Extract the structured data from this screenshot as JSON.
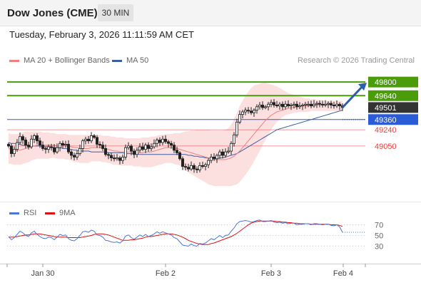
{
  "header": {
    "title": "Dow Jones (CME)",
    "timeframe": "30 MIN"
  },
  "datetime": "Tuesday, February 3, 2026 11:11:59 AM CET",
  "legend": {
    "ma20": "MA 20 + Bollinger Bands",
    "ma50": "MA 50",
    "credit": "Research © 2026 Trading Central"
  },
  "rsi_legend": {
    "rsi": "RSI",
    "ma9": "9MA"
  },
  "colors": {
    "green": "#4a9c0b",
    "blue": "#2a5cd8",
    "red": "#e84040",
    "dark": "#333333",
    "rsi": "#4a77d6",
    "ma9": "#e01010",
    "ma50": "#3a5fa0",
    "ma20": "#f08080",
    "bands": "#fbdada",
    "arrow": "#2e5ea8"
  },
  "chart_data": [
    {
      "type": "candlestick",
      "name": "price",
      "ylim": [
        48380,
        49960
      ],
      "x_ticks": [
        "Jan 30",
        "Feb 2",
        "Feb 3",
        "Feb 4"
      ],
      "levels": [
        {
          "label": "49800",
          "value": 49800,
          "kind": "resistance"
        },
        {
          "label": "49640",
          "value": 49640,
          "kind": "resistance"
        },
        {
          "label": "49501",
          "value": 49501,
          "kind": "last"
        },
        {
          "label": "49360",
          "value": 49360,
          "kind": "support"
        },
        {
          "label": "49240",
          "value": 49240,
          "kind": "pivot"
        },
        {
          "label": "49050",
          "value": 49050,
          "kind": "pivot"
        }
      ],
      "close": [
        49050,
        48960,
        49010,
        49090,
        49160,
        49120,
        49060,
        49040,
        49130,
        49170,
        49110,
        49060,
        49020,
        49010,
        49040,
        49030,
        48980,
        49030,
        49080,
        49060,
        49070,
        48980,
        48940,
        48920,
        48960,
        49020,
        49110,
        49130,
        49110,
        49170,
        49150,
        49070,
        49060,
        49020,
        48950,
        48940,
        48910,
        48900,
        48910,
        48880,
        48920,
        49030,
        49050,
        48990,
        48950,
        49000,
        49040,
        49010,
        49060,
        49020,
        49040,
        49080,
        49120,
        49090,
        49130,
        49100,
        49080,
        49060,
        49000,
        48970,
        48900,
        48810,
        48800,
        48780,
        48820,
        48780,
        48770,
        48820,
        48810,
        48830,
        48880,
        48920,
        48900,
        48940,
        48980,
        48940,
        48980,
        48990,
        49080,
        49180,
        49330,
        49420,
        49450,
        49470,
        49460,
        49440,
        49470,
        49510,
        49530,
        49500,
        49510,
        49540,
        49560,
        49530,
        49520,
        49540,
        49510,
        49540,
        49520,
        49530,
        49540,
        49510,
        49520,
        49530,
        49540,
        49540,
        49520,
        49540,
        49550,
        49540,
        49530,
        49540,
        49550,
        49530,
        49520,
        49540,
        49520,
        49501
      ],
      "ma20": [
        49020,
        49010,
        49000,
        49000,
        49000,
        49010,
        49020,
        49030,
        49040,
        49050,
        49060,
        49060,
        49060,
        49060,
        49060,
        49060,
        49060,
        49050,
        49050,
        49050,
        49050,
        49050,
        49040,
        49030,
        49030,
        49020,
        49020,
        49020,
        49020,
        49030,
        49030,
        49030,
        49030,
        49020,
        49020,
        49010,
        49000,
        48990,
        48990,
        48980,
        48980,
        48980,
        48980,
        48980,
        48970,
        48970,
        48970,
        48970,
        48980,
        48980,
        48980,
        48990,
        49000,
        49010,
        49020,
        49030,
        49030,
        49030,
        49020,
        49020,
        49010,
        49000,
        48990,
        48980,
        48970,
        48960,
        48950,
        48940,
        48930,
        48920,
        48910,
        48900,
        48890,
        48890,
        48890,
        48890,
        48890,
        48900,
        48910,
        48930,
        48960,
        48990,
        49030,
        49070,
        49110,
        49150,
        49190,
        49230,
        49270,
        49310,
        49350,
        49380,
        49410,
        49430,
        49450,
        49460,
        49470,
        49480,
        49490,
        49500,
        49500,
        49510,
        49510,
        49520,
        49520,
        49520,
        49520,
        49520,
        49530,
        49530,
        49530,
        49530,
        49530,
        49530,
        49530,
        49530,
        49530,
        49530
      ],
      "ma50": [
        49090,
        49080,
        49080,
        49070,
        49070,
        49060,
        49060,
        49060,
        49050,
        49050,
        49050,
        49050,
        49040,
        49040,
        49040,
        49040,
        49030,
        49030,
        49030,
        49020,
        49020,
        49010,
        49010,
        49000,
        49000,
        48990,
        48990,
        48990,
        48990,
        48980,
        48980,
        48980,
        48980,
        48980,
        48980,
        48970,
        48970,
        48970,
        48970,
        48970,
        48970,
        48960,
        48960,
        48960,
        48960,
        48960,
        48950,
        48950,
        48950,
        48950,
        48950,
        48950,
        48950,
        48950,
        48950,
        48950,
        48950,
        48950,
        48950,
        48950,
        48950,
        48950,
        48950,
        48940,
        48940,
        48930,
        48930,
        48920,
        48920,
        48910,
        48910,
        48900,
        48900,
        48900,
        48910,
        48910,
        48920,
        48930,
        48940,
        48950,
        48960,
        48980,
        49000,
        49020,
        49040,
        49060,
        49080,
        49100,
        49120,
        49140,
        49160,
        49180,
        49200,
        49220,
        49240,
        49250,
        49260,
        49270,
        49280,
        49290,
        49300,
        49310,
        49320,
        49330,
        49340,
        49350,
        49360,
        49370,
        49380,
        49390,
        49400,
        49410,
        49420,
        49430,
        49440,
        49450,
        49460,
        49470
      ],
      "bands_upper": [
        49200,
        49190,
        49190,
        49190,
        49200,
        49210,
        49220,
        49220,
        49220,
        49220,
        49220,
        49220,
        49210,
        49210,
        49210,
        49200,
        49200,
        49190,
        49190,
        49190,
        49190,
        49180,
        49180,
        49180,
        49180,
        49180,
        49180,
        49180,
        49180,
        49180,
        49180,
        49180,
        49180,
        49170,
        49170,
        49170,
        49160,
        49160,
        49150,
        49150,
        49150,
        49140,
        49140,
        49140,
        49140,
        49140,
        49140,
        49150,
        49150,
        49150,
        49160,
        49160,
        49170,
        49180,
        49180,
        49190,
        49190,
        49190,
        49200,
        49200,
        49200,
        49210,
        49220,
        49220,
        49230,
        49230,
        49240,
        49240,
        49240,
        49240,
        49240,
        49230,
        49230,
        49230,
        49230,
        49230,
        49240,
        49260,
        49300,
        49360,
        49440,
        49520,
        49580,
        49640,
        49690,
        49730,
        49760,
        49770,
        49780,
        49790,
        49790,
        49780,
        49770,
        49760,
        49750,
        49730,
        49710,
        49690,
        49670,
        49660,
        49650,
        49640,
        49630,
        49620,
        49610,
        49610,
        49600,
        49600,
        49590,
        49590,
        49590,
        49580,
        49580,
        49580,
        49580,
        49580,
        49580,
        49580
      ],
      "bands_lower": [
        48840,
        48840,
        48830,
        48830,
        48830,
        48840,
        48850,
        48860,
        48880,
        48890,
        48900,
        48900,
        48900,
        48900,
        48900,
        48910,
        48910,
        48900,
        48900,
        48900,
        48890,
        48890,
        48880,
        48860,
        48860,
        48850,
        48850,
        48850,
        48850,
        48870,
        48870,
        48870,
        48870,
        48860,
        48860,
        48850,
        48840,
        48830,
        48830,
        48820,
        48820,
        48820,
        48820,
        48820,
        48810,
        48810,
        48810,
        48800,
        48800,
        48800,
        48800,
        48810,
        48820,
        48830,
        48840,
        48850,
        48850,
        48850,
        48840,
        48830,
        48820,
        48790,
        48760,
        48740,
        48720,
        48700,
        48680,
        48660,
        48640,
        48620,
        48600,
        48590,
        48580,
        48580,
        48580,
        48580,
        48580,
        48580,
        48580,
        48590,
        48600,
        48630,
        48670,
        48710,
        48760,
        48810,
        48870,
        48930,
        48990,
        49060,
        49120,
        49180,
        49240,
        49290,
        49330,
        49360,
        49390,
        49410,
        49420,
        49430,
        49440,
        49440,
        49450,
        49450,
        49450,
        49450,
        49460,
        49460,
        49460,
        49460,
        49460,
        49460,
        49460,
        49460,
        49460,
        49460,
        49460,
        49460
      ]
    },
    {
      "type": "line",
      "name": "rsi",
      "ylim": [
        0,
        100
      ],
      "y_ticks": [
        70,
        50,
        30
      ],
      "series": [
        {
          "name": "RSI",
          "values": [
            48,
            42,
            46,
            52,
            58,
            55,
            50,
            48,
            55,
            58,
            52,
            48,
            45,
            44,
            47,
            46,
            42,
            47,
            52,
            50,
            51,
            44,
            41,
            40,
            44,
            50,
            57,
            58,
            56,
            60,
            58,
            51,
            50,
            47,
            41,
            40,
            38,
            37,
            38,
            36,
            40,
            49,
            51,
            46,
            43,
            47,
            51,
            48,
            52,
            48,
            50,
            53,
            57,
            54,
            57,
            55,
            53,
            51,
            46,
            44,
            38,
            32,
            31,
            30,
            34,
            31,
            30,
            35,
            34,
            36,
            40,
            44,
            42,
            46,
            50,
            46,
            50,
            51,
            58,
            64,
            72,
            76,
            77,
            78,
            77,
            75,
            76,
            78,
            79,
            76,
            76,
            77,
            78,
            75,
            74,
            75,
            73,
            74,
            72,
            73,
            73,
            70,
            71,
            71,
            72,
            72,
            70,
            72,
            72,
            71,
            70,
            71,
            71,
            69,
            68,
            70,
            66,
            56
          ]
        },
        {
          "name": "9MA",
          "values": [
            47,
            47,
            47,
            48,
            49,
            50,
            51,
            51,
            52,
            53,
            53,
            53,
            52,
            51,
            50,
            49,
            48,
            47,
            47,
            47,
            47,
            46,
            46,
            46,
            46,
            46,
            47,
            48,
            49,
            50,
            52,
            53,
            53,
            53,
            52,
            51,
            49,
            47,
            45,
            43,
            41,
            41,
            41,
            42,
            42,
            43,
            44,
            45,
            47,
            48,
            48,
            49,
            50,
            51,
            52,
            53,
            53,
            53,
            52,
            51,
            49,
            47,
            44,
            41,
            39,
            37,
            35,
            34,
            33,
            33,
            33,
            35,
            36,
            38,
            40,
            42,
            44,
            46,
            48,
            51,
            54,
            58,
            62,
            66,
            70,
            73,
            75,
            76,
            77,
            77,
            77,
            77,
            77,
            77,
            76,
            76,
            75,
            75,
            74,
            74,
            73,
            73,
            72,
            72,
            72,
            72,
            71,
            71,
            71,
            71,
            71,
            71,
            71,
            70,
            70,
            70,
            69,
            67
          ]
        }
      ]
    }
  ]
}
